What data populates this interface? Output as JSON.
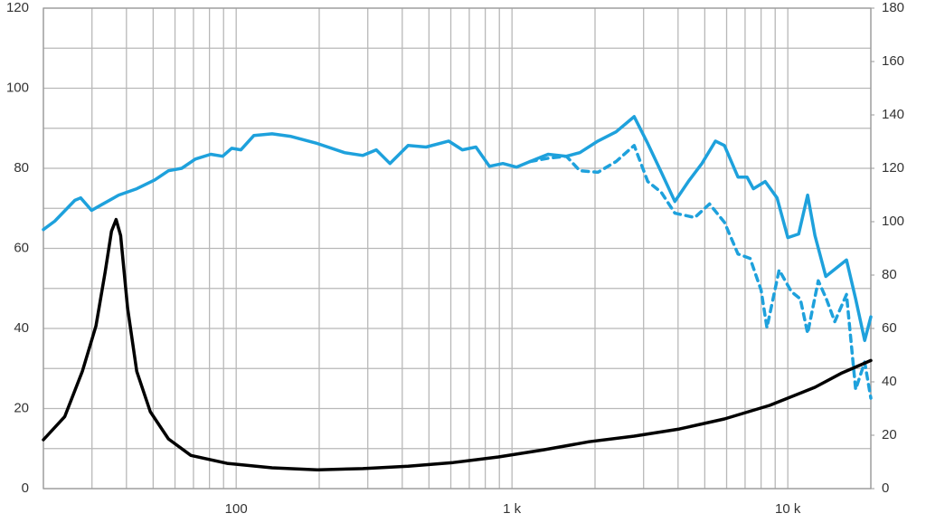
{
  "chart_data": {
    "type": "line",
    "xscale": "log",
    "xlim": [
      20,
      20000
    ],
    "xticks": [
      {
        "value": 100,
        "label": "100"
      },
      {
        "value": 1000,
        "label": "1 k"
      },
      {
        "value": 10000,
        "label": "10 k"
      }
    ],
    "x_minor_ticks": [
      20,
      30,
      40,
      50,
      60,
      70,
      80,
      90,
      200,
      300,
      400,
      500,
      600,
      700,
      800,
      900,
      2000,
      3000,
      4000,
      5000,
      6000,
      7000,
      8000,
      9000,
      20000
    ],
    "ylim": [
      0,
      120
    ],
    "yticks": [
      0,
      20,
      40,
      60,
      80,
      100,
      120
    ],
    "y_minor_ticks": [
      10,
      30,
      50,
      70,
      90,
      110
    ],
    "y2lim": [
      0,
      180
    ],
    "y2ticks": [
      0,
      20,
      40,
      60,
      80,
      100,
      120,
      140,
      160,
      180
    ],
    "grid": true,
    "series": [
      {
        "color": "#1ea1dc",
        "style": "solid",
        "x": [
          20,
          22,
          26,
          27.3,
          29.9,
          32.7,
          37.5,
          43.6,
          50.7,
          56.8,
          63.5,
          71.1,
          80.9,
          89.3,
          96.3,
          104,
          116,
          135,
          157,
          197,
          247,
          288,
          322,
          361,
          420,
          488,
          589,
          661,
          740,
          828,
          927,
          1038,
          1163,
          1352,
          1574,
          1762,
          2049,
          2384,
          2773,
          3105,
          3477,
          3894,
          4360,
          4883,
          5469,
          5893,
          6600,
          7113,
          7500,
          8280,
          9140,
          10000,
          10950,
          11800,
          12540,
          13730,
          16330,
          17620,
          19000,
          20000
        ],
        "values": [
          64.7,
          66.8,
          72,
          72.6,
          69.5,
          71,
          73.3,
          74.9,
          77.1,
          79.4,
          80,
          82.3,
          83.5,
          83,
          85,
          84.6,
          88.2,
          88.6,
          88,
          86.2,
          83.9,
          83.2,
          84.6,
          81.2,
          85.7,
          85.3,
          86.8,
          84.6,
          85.3,
          80.5,
          81.2,
          80.3,
          81.7,
          83.5,
          83,
          83.9,
          86.8,
          89.1,
          92.9,
          86.2,
          79,
          71.7,
          76.7,
          81.2,
          86.8,
          85.7,
          77.8,
          77.8,
          74.9,
          76.7,
          72.6,
          62.7,
          63.6,
          73.3,
          63.2,
          53,
          57.1,
          47.4,
          37,
          42.9
        ]
      },
      {
        "color": "#1ea1dc",
        "style": "dashed",
        "x": [
          1163,
          1352,
          1574,
          1762,
          2049,
          2384,
          2773,
          3105,
          3477,
          3894,
          4600,
          5200,
          5893,
          6600,
          7300,
          8000,
          8400,
          9300,
          10300,
          11100,
          11800,
          12900,
          13800,
          14800,
          16330,
          17620,
          19000,
          20000
        ],
        "values": [
          81.7,
          82.5,
          83,
          79.4,
          79,
          81.7,
          85.7,
          76.7,
          74,
          68.8,
          67.7,
          71.1,
          66.5,
          58.6,
          57.5,
          49.6,
          40.2,
          54.6,
          49.2,
          47.4,
          38.8,
          51.9,
          47.4,
          41.7,
          48.5,
          24.8,
          31.6,
          22.6
        ]
      },
      {
        "color": "#000000",
        "style": "solid",
        "x": [
          20,
          23.9,
          27.7,
          31,
          33.5,
          35.3,
          36.7,
          38.1,
          40.4,
          43.6,
          48.8,
          56.8,
          68.5,
          92.7,
          135,
          197,
          288,
          420,
          612,
          893,
          1303,
          1901,
          2773,
          4045,
          5893,
          8590,
          12540,
          15730,
          20000
        ],
        "values": [
          12.2,
          18,
          29.3,
          40.6,
          54.1,
          64.3,
          67.2,
          63.2,
          45.1,
          29.3,
          19.2,
          12.4,
          8.3,
          6.3,
          5.2,
          4.7,
          5,
          5.6,
          6.5,
          7.9,
          9.7,
          11.7,
          13.1,
          14.9,
          17.4,
          20.8,
          25.3,
          28.9,
          32
        ]
      }
    ]
  }
}
